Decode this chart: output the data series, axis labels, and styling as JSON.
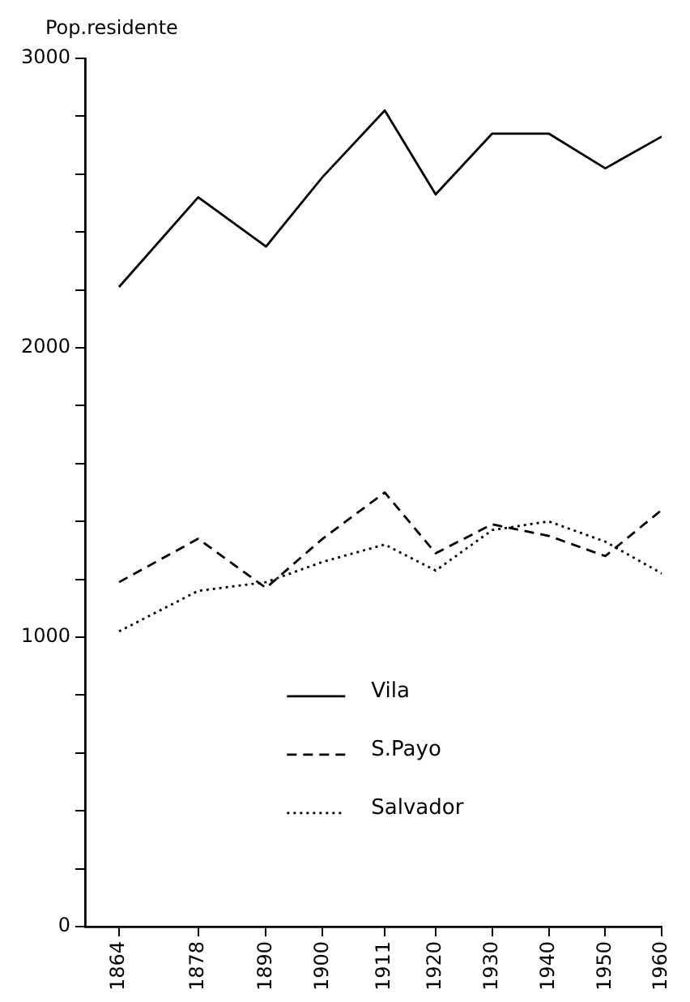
{
  "chart_data": {
    "type": "line",
    "ylabel": "Pop.residente",
    "x": [
      1864,
      1878,
      1890,
      1900,
      1911,
      1920,
      1930,
      1940,
      1950,
      1960
    ],
    "xlim": [
      1858,
      1960
    ],
    "xticks": [
      1864,
      1878,
      1890,
      1900,
      1911,
      1920,
      1930,
      1940,
      1950,
      1960
    ],
    "ylim": [
      0,
      3000
    ],
    "yticks": [
      0,
      {
        "value": 200,
        "label": null
      },
      {
        "value": 400,
        "label": null
      },
      {
        "value": 600,
        "label": null
      },
      {
        "value": 800,
        "label": null
      },
      1000,
      {
        "value": 1200,
        "label": null
      },
      {
        "value": 1400,
        "label": null
      },
      {
        "value": 1600,
        "label": null
      },
      {
        "value": 1800,
        "label": null
      },
      2000,
      {
        "value": 2200,
        "label": null
      },
      {
        "value": 2400,
        "label": null
      },
      {
        "value": 2600,
        "label": null
      },
      {
        "value": 2800,
        "label": null
      },
      3000
    ],
    "grid": false,
    "legend": "bottom",
    "marker": "none",
    "series": [
      {
        "name": "Vila",
        "color": "#000000",
        "line_style": "solid",
        "values": [
          2210,
          2520,
          2350,
          2590,
          2820,
          2530,
          2740,
          2740,
          2620,
          2730
        ]
      },
      {
        "name": "S.Payo",
        "color": "#000000",
        "line_style": "dashed",
        "values": [
          1190,
          1340,
          1170,
          1340,
          1500,
          1290,
          1390,
          1350,
          1280,
          1440
        ]
      },
      {
        "name": "Salvador",
        "color": "#000000",
        "line_style": "dotted",
        "values": [
          1020,
          1160,
          1190,
          1260,
          1320,
          1230,
          1370,
          1400,
          1330,
          1220
        ]
      }
    ]
  }
}
